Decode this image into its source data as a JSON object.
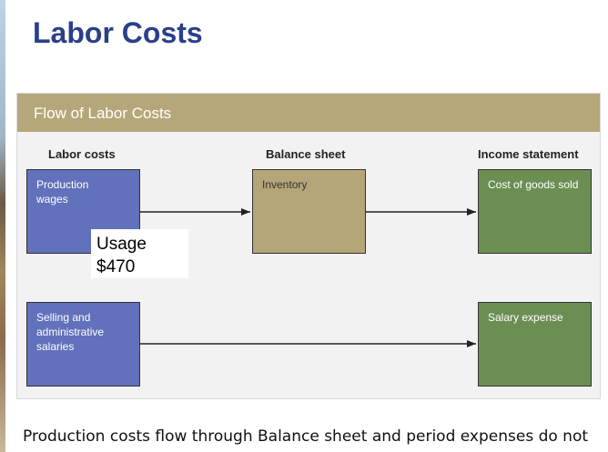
{
  "slide": {
    "title": "Labor Costs",
    "caption": "Production costs flow through Balance sheet and period expenses do not"
  },
  "figure": {
    "header": "Flow of Labor Costs",
    "columns": {
      "labor": "Labor costs",
      "balance": "Balance sheet",
      "income": "Income statement"
    },
    "boxes": {
      "production_wages": "Production wages",
      "inventory": "Inventory",
      "cost_of_goods_sold": "Cost of goods sold",
      "selling_admin_salaries": "Selling and administrative salaries",
      "salary_expense": "Salary expense"
    },
    "callout": {
      "line1": "Usage",
      "line2": "$470"
    }
  },
  "colors": {
    "title": "#2a3f8a",
    "header": "#b6a77a",
    "labor_box": "#6271bb",
    "balance_box": "#b4a678",
    "income_box": "#6b8f53"
  }
}
